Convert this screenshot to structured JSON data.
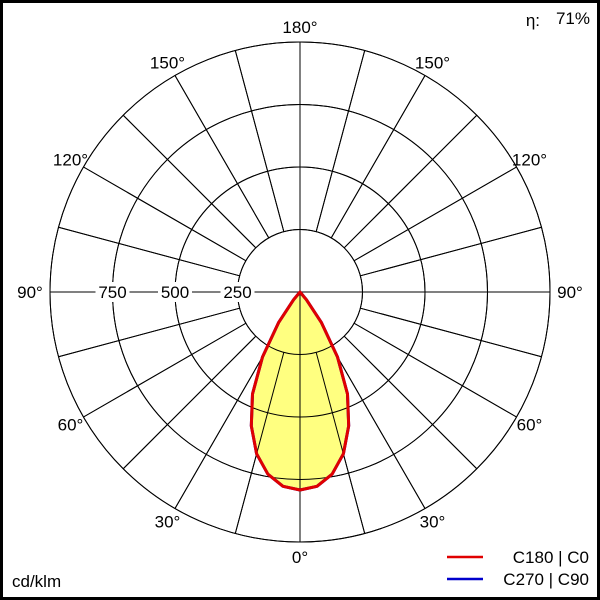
{
  "efficiency": {
    "symbol": "η:",
    "value": "71%"
  },
  "unit_label": "cd/klm",
  "chart_data": {
    "type": "polar",
    "unit": "cd/klm",
    "radial_ticks": [
      250,
      500,
      750
    ],
    "radial_max": 1000,
    "angle_labels_left": [
      "180°",
      "150°",
      "120°",
      "90°",
      "60°",
      "30°",
      "0°"
    ],
    "angle_labels_right": [
      "150°",
      "120°",
      "90°",
      "60°",
      "30°"
    ],
    "angle_ticks": [
      0,
      30,
      60,
      90,
      120,
      150,
      180
    ],
    "grid_step_deg": 15,
    "legend_placement": "bottom-right",
    "series": [
      {
        "name": "C270 | C90",
        "color": "#0000cc",
        "gamma": [
          0,
          5,
          10,
          15,
          20,
          25,
          30,
          35,
          40,
          45,
          90
        ],
        "values": [
          792,
          780,
          740,
          670,
          570,
          450,
          300,
          150,
          40,
          0,
          0
        ]
      },
      {
        "name": "C180 | C0",
        "color": "#e00000",
        "fill": "#ffff80",
        "gamma": [
          0,
          5,
          10,
          15,
          20,
          25,
          30,
          35,
          40,
          45,
          90
        ],
        "values": [
          792,
          780,
          740,
          670,
          570,
          450,
          300,
          150,
          40,
          0,
          0
        ]
      }
    ]
  }
}
